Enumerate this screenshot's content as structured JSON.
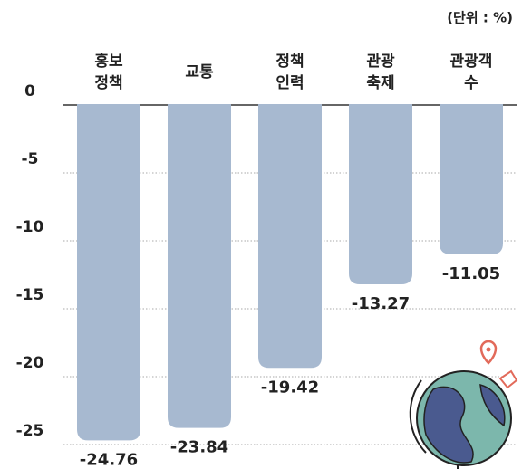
{
  "chart_data": {
    "type": "bar",
    "unit_note": "(단위 : %)",
    "categories": [
      [
        "홍보",
        "정책"
      ],
      [
        "교통"
      ],
      [
        "정책",
        "인력"
      ],
      [
        "관광",
        "축제"
      ],
      [
        "관광객",
        "수"
      ]
    ],
    "values": [
      -24.76,
      -23.84,
      -19.42,
      -13.27,
      -11.05
    ],
    "color": "#a7b9d0",
    "ylim": [
      -25,
      0
    ],
    "yticks": [
      0,
      -5,
      -10,
      -15,
      -20,
      -25
    ],
    "grid": true
  }
}
